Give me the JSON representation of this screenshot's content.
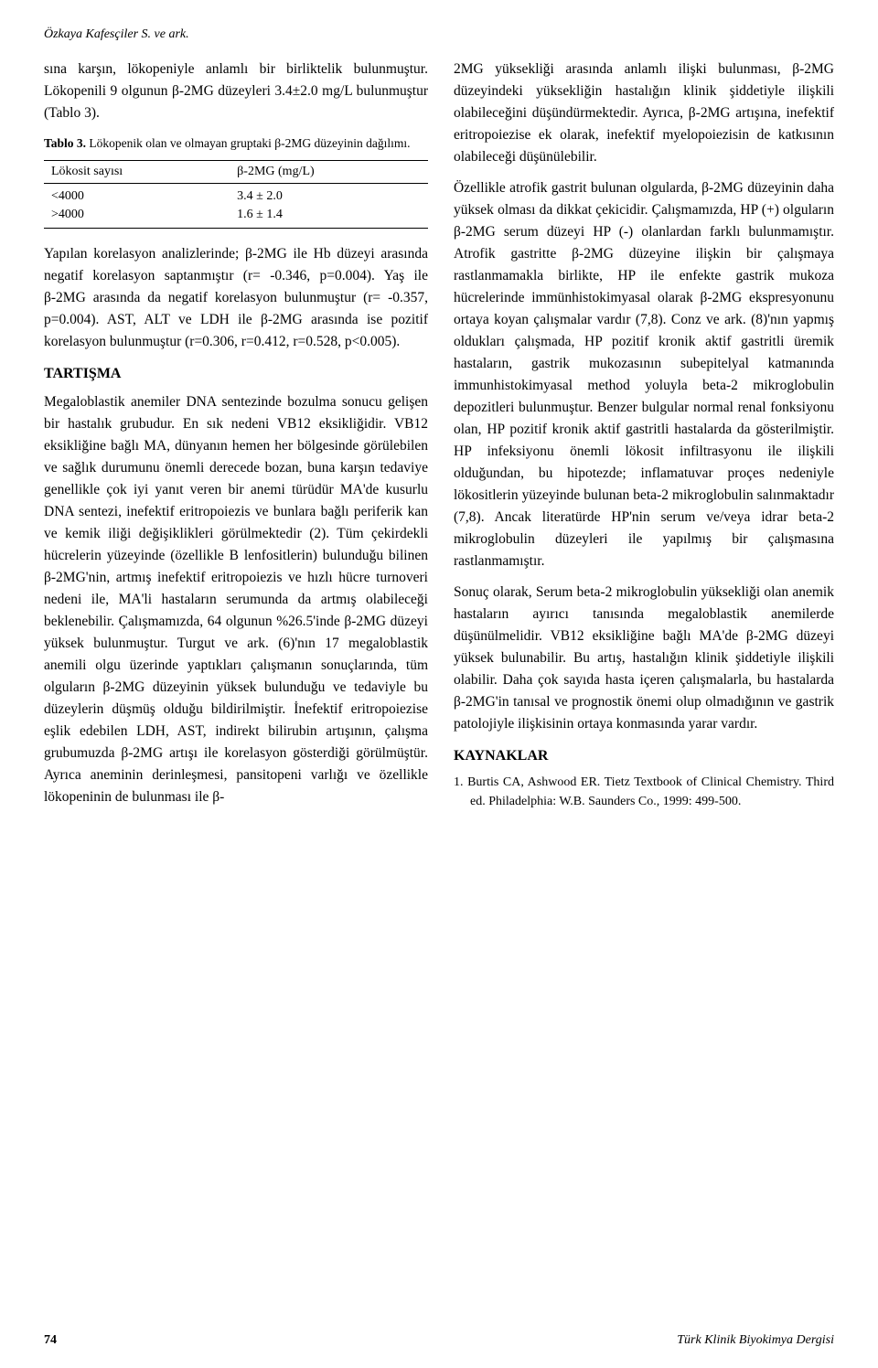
{
  "header": {
    "authors_line": "Özkaya Kafesçiler S. ve ark."
  },
  "left_column": {
    "para1": "sına karşın, lökopeniyle anlamlı bir birliktelik bulunmuştur. Lökopenili 9 olgunun β-2MG düzeyleri 3.4±2.0 mg/L bulunmuştur (Tablo 3).",
    "table3": {
      "caption_label": "Tablo 3.",
      "caption_text": "Lökopenik olan ve olmayan gruptaki β-2MG düzeyinin dağılımı.",
      "col_headers": [
        "Lökosit sayısı",
        "β-2MG (mg/L)"
      ],
      "rows": [
        [
          "<4000",
          "3.4 ± 2.0"
        ],
        [
          ">4000",
          "1.6 ± 1.4"
        ]
      ]
    },
    "para2": "Yapılan korelasyon analizlerinde; β-2MG ile Hb düzeyi arasında negatif korelasyon saptanmıştır (r= -0.346, p=0.004). Yaş ile β-2MG arasında da negatif korelasyon bulunmuştur (r= -0.357, p=0.004). AST, ALT ve LDH ile β-2MG arasında ise pozitif korelasyon bulunmuştur (r=0.306, r=0.412, r=0.528, p<0.005).",
    "tartisma_heading": "TARTIŞMA",
    "para3": "Megaloblastik anemiler DNA sentezinde bozulma sonucu gelişen bir hastalık grubudur. En sık nedeni VB12 eksikliğidir. VB12 eksikliğine bağlı MA, dünyanın hemen her bölgesinde görülebilen ve sağlık durumunu önemli derecede bozan, buna karşın tedaviye genellikle çok iyi yanıt veren bir anemi türüdür MA'de kusurlu DNA sentezi, inefektif eritropoiezis ve bunlara bağlı periferik kan ve kemik iliği değişiklikleri görülmektedir (2). Tüm çekirdekli hücrelerin yüzeyinde (özellikle B lenfositlerin) bulunduğu bilinen β-2MG'nin, artmış inefektif eritropoiezis ve hızlı hücre turnoveri nedeni ile, MA'li hastaların serumunda da artmış olabileceği beklenebilir. Çalışmamızda, 64 olgunun %26.5'inde β-2MG düzeyi yüksek bulunmuştur. Turgut ve ark. (6)'nın 17 megaloblastik anemili olgu üzerinde yaptıkları çalışmanın sonuçlarında, tüm olguların β-2MG düzeyinin yüksek bulunduğu ve tedaviyle bu düzeylerin düşmüş olduğu bildirilmiştir. İnefektif eritropoiezise eşlik edebilen LDH, AST, indirekt bilirubin artışının, çalışma grubumuzda β-2MG artışı ile korelasyon gösterdiği görülmüştür. Ayrıca aneminin derinleşmesi, pansitopeni varlığı ve özellikle lökopeninin de bulunması ile β-"
  },
  "right_column": {
    "para1": "2MG yüksekliği arasında anlamlı ilişki bulunması, β-2MG düzeyindeki yüksekliğin hastalığın klinik şiddetiyle ilişkili olabileceğini düşündürmektedir. Ayrıca, β-2MG artışına, inefektif eritropoiezise ek olarak, inefektif myelopoiezisin de katkısının olabileceği düşünülebilir.",
    "para2": "Özellikle atrofik gastrit bulunan olgularda, β-2MG düzeyinin daha yüksek olması da dikkat çekicidir. Çalışmamızda, HP (+) olguların β-2MG serum düzeyi HP (-) olanlardan farklı bulunmamıştır. Atrofik gastritte β-2MG düzeyine ilişkin bir çalışmaya rastlanmamakla birlikte, HP ile enfekte gastrik mukoza hücrelerinde immünhistokimyasal olarak β-2MG ekspresyonunu ortaya koyan çalışmalar vardır (7,8). Conz ve ark. (8)'nın yapmış oldukları çalışmada, HP pozitif kronik aktif gastritli üremik hastaların, gastrik mukozasının subepitelyal katmanında immunhistokimyasal method yoluyla beta-2 mikroglobulin depozitleri bulunmuştur. Benzer bulgular normal renal fonksiyonu olan, HP pozitif kronik aktif gastritli hastalarda da gösterilmiştir. HP infeksiyonu önemli lökosit infiltrasyonu ile ilişkili olduğundan, bu hipotezde; inflamatuvar proçes nedeniyle lökositlerin yüzeyinde bulunan beta-2 mikroglobulin salınmaktadır (7,8). Ancak literatürde HP'nin serum ve/veya idrar beta-2 mikroglobulin düzeyleri ile yapılmış bir çalışmasına rastlanmamıştır.",
    "para3": "Sonuç olarak, Serum beta-2 mikroglobulin yüksekliği olan anemik hastaların ayırıcı tanısında megaloblastik anemilerde düşünülmelidir. VB12 eksikliğine bağlı MA'de β-2MG düzeyi yüksek bulunabilir. Bu artış, hastalığın klinik şiddetiyle ilişkili olabilir. Daha çok sayıda hasta içeren çalışmalarla, bu hastalarda β-2MG'in tanısal ve prognostik önemi olup olmadığının ve gastrik patolojiyle ilişkisinin ortaya konmasında yarar vardır.",
    "kaynaklar_heading": "KAYNAKLAR",
    "ref1": "1. Burtis CA, Ashwood ER. Tietz Textbook of Clinical Chemistry. Third ed. Philadelphia: W.B. Saunders Co., 1999: 499-500."
  },
  "footer": {
    "page_number": "74",
    "journal": "Türk Klinik Biyokimya Dergisi"
  }
}
